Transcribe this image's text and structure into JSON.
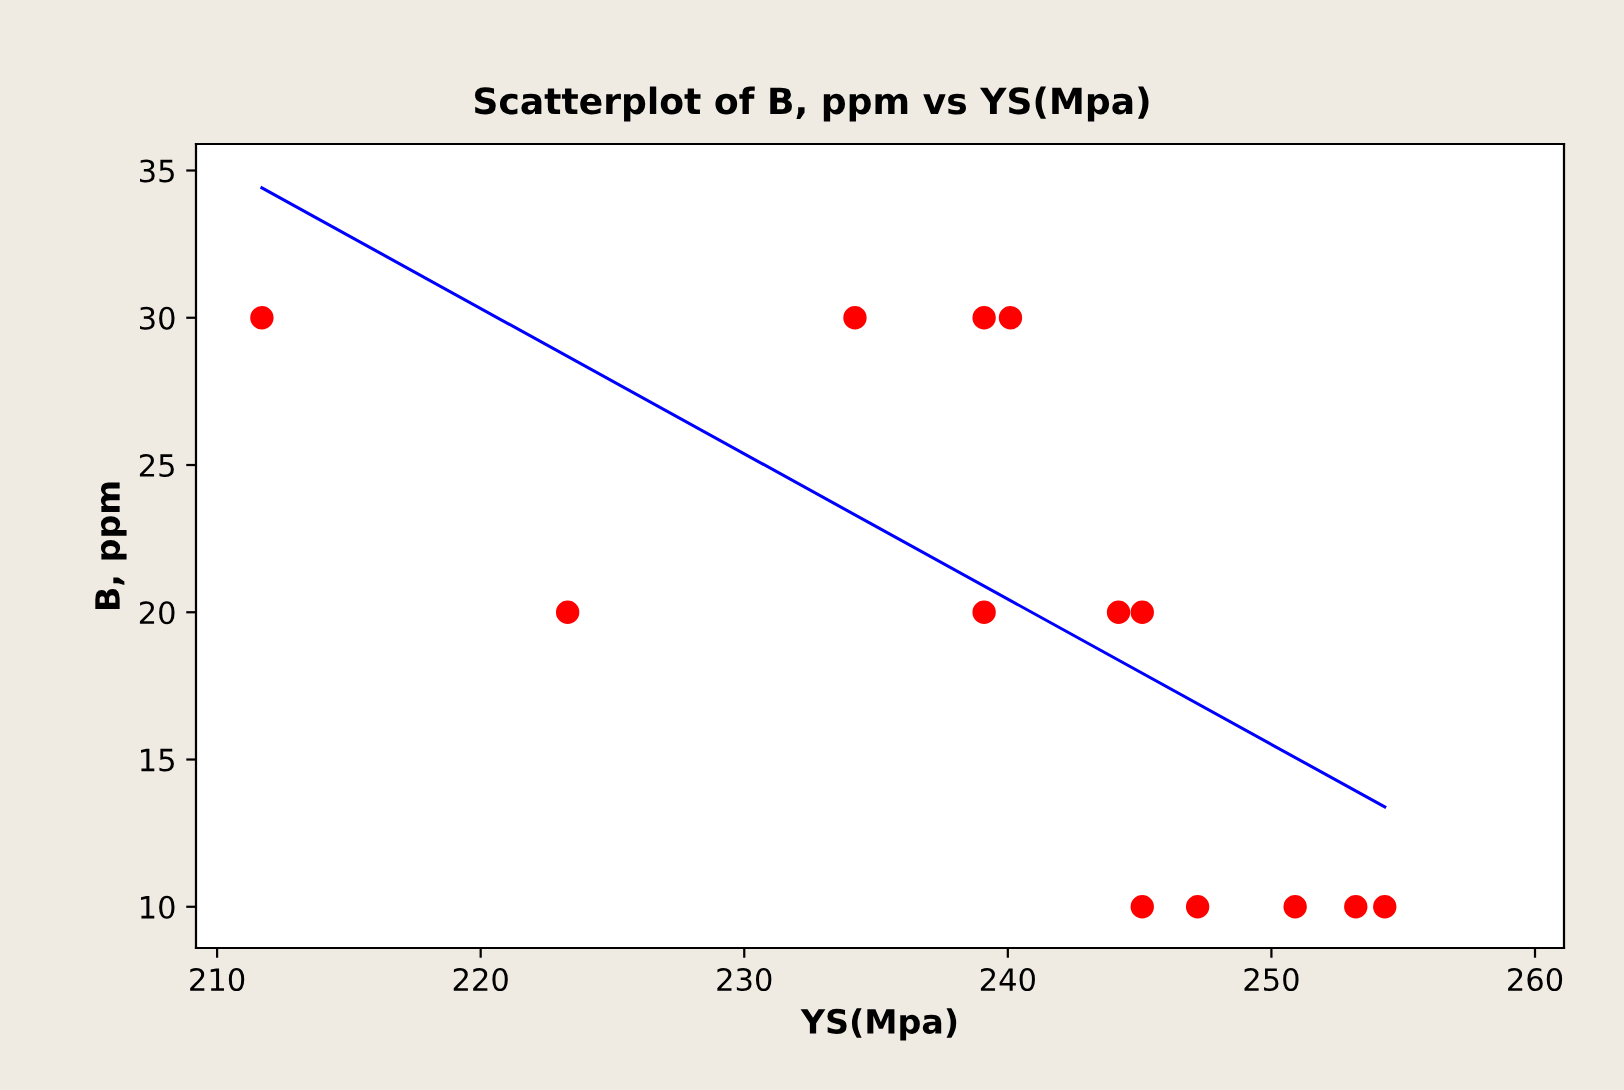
{
  "chart_data": {
    "type": "scatter",
    "title": "Scatterplot of B, ppm vs YS(Mpa)",
    "xlabel": "YS(Mpa)",
    "ylabel": "B, ppm",
    "xlim": [
      209.2,
      261.1
    ],
    "ylim": [
      8.6,
      35.9
    ],
    "xticks": [
      210,
      220,
      230,
      240,
      250,
      260
    ],
    "yticks": [
      10,
      15,
      20,
      25,
      30,
      35
    ],
    "grid": false,
    "legend": false,
    "marker": "circle",
    "series": [
      {
        "color": "#ff0000",
        "x": [
          211.7,
          223.3,
          234.2,
          239.1,
          239.1,
          240.1,
          244.2,
          245.1,
          245.1,
          247.2,
          250.9,
          253.2,
          254.3
        ],
        "values": [
          30,
          20,
          30,
          30,
          20,
          30,
          20,
          20,
          10,
          10,
          10,
          10,
          10
        ]
      },
      {
        "type": "line",
        "color": "#0000ff",
        "line_style": "solid",
        "marker": "none",
        "x": [
          211.7,
          254.3
        ],
        "values": [
          34.41,
          13.39
        ]
      }
    ]
  }
}
